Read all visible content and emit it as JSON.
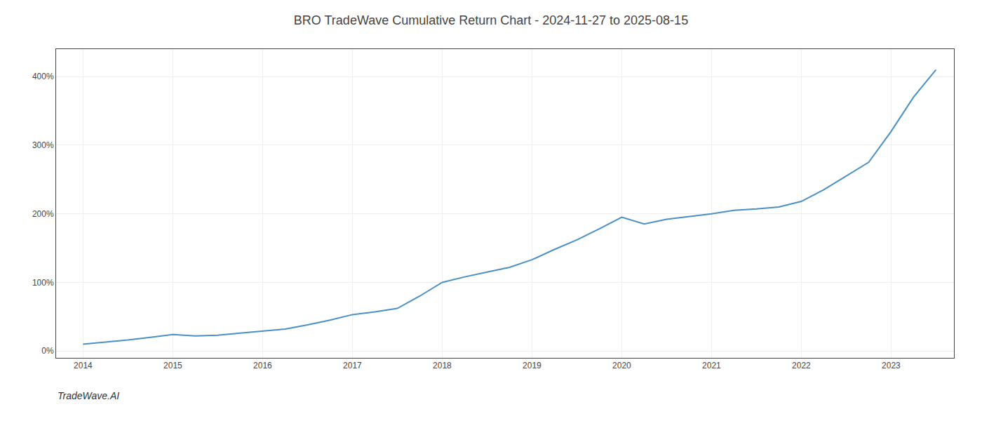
{
  "chart_data": {
    "type": "line",
    "title": "BRO TradeWave Cumulative Return Chart - 2024-11-27 to 2025-08-15",
    "annotations": [
      "TradeWave.AI"
    ],
    "x": [
      2014.0,
      2014.25,
      2014.5,
      2014.75,
      2015.0,
      2015.25,
      2015.5,
      2015.75,
      2016.0,
      2016.25,
      2016.5,
      2016.75,
      2017.0,
      2017.25,
      2017.5,
      2017.75,
      2018.0,
      2018.25,
      2018.5,
      2018.75,
      2019.0,
      2019.25,
      2019.5,
      2019.75,
      2020.0,
      2020.25,
      2020.5,
      2020.75,
      2021.0,
      2021.25,
      2021.5,
      2021.75,
      2022.0,
      2022.25,
      2022.5,
      2022.75,
      2023.0,
      2023.25,
      2023.5
    ],
    "values": [
      10,
      13,
      16,
      20,
      24,
      22,
      23,
      26,
      29,
      32,
      38,
      45,
      53,
      57,
      62,
      80,
      100,
      108,
      115,
      122,
      133,
      148,
      162,
      178,
      195,
      185,
      192,
      196,
      200,
      205,
      207,
      210,
      218,
      235,
      255,
      275,
      320,
      370,
      410
    ],
    "color": "#4a90c4",
    "xlim": [
      2013.7,
      2023.7
    ],
    "ylim": [
      -10,
      440
    ],
    "xticks": [
      2014,
      2015,
      2016,
      2017,
      2018,
      2019,
      2020,
      2021,
      2022,
      2023
    ],
    "yticks": [
      {
        "value": 0,
        "label": "0%"
      },
      {
        "value": 100,
        "label": "100%"
      },
      {
        "value": 200,
        "label": "200%"
      },
      {
        "value": 300,
        "label": "300%"
      },
      {
        "value": 400,
        "label": "400%"
      }
    ],
    "grid": true
  }
}
